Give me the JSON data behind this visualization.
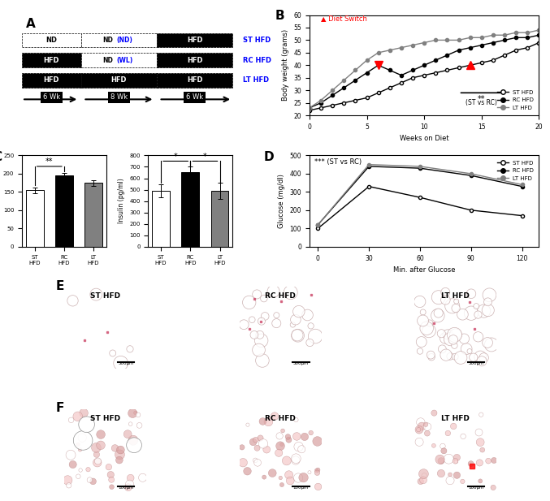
{
  "panel_A": {
    "rows": [
      {
        "segments": [
          "ND",
          "ND (ND)",
          "HFD"
        ],
        "colors": [
          "white",
          "white",
          "black"
        ],
        "text_colors": [
          "black",
          "black",
          "white"
        ],
        "highlight": "ND (ND)",
        "highlight_color": "blue",
        "label": "ST HFD",
        "label_color": "blue"
      },
      {
        "segments": [
          "HFD",
          "ND (WL)",
          "HFD"
        ],
        "colors": [
          "black",
          "white",
          "black"
        ],
        "text_colors": [
          "white",
          "black",
          "white"
        ],
        "highlight": "ND (WL)",
        "highlight_color": "blue",
        "label": "RC HFD",
        "label_color": "blue"
      },
      {
        "segments": [
          "HFD",
          "HFD",
          "HFD"
        ],
        "colors": [
          "black",
          "black",
          "black"
        ],
        "text_colors": [
          "white",
          "white",
          "white"
        ],
        "highlight": null,
        "label": "LT HFD",
        "label_color": "blue"
      }
    ],
    "arrow_labels": [
      "6 Wk",
      "8 Wk",
      "6 Wk"
    ]
  },
  "panel_B": {
    "weeks": [
      0,
      1,
      2,
      3,
      4,
      5,
      6,
      7,
      8,
      9,
      10,
      11,
      12,
      13,
      14,
      15,
      16,
      17,
      18,
      19,
      20
    ],
    "ST_HFD": [
      22,
      23,
      24,
      25,
      26,
      27,
      29,
      31,
      33,
      35,
      36,
      37,
      38,
      39,
      40,
      41,
      42,
      44,
      46,
      47,
      49
    ],
    "RC_HFD": [
      23,
      25,
      28,
      31,
      34,
      37,
      40,
      38,
      36,
      38,
      40,
      42,
      44,
      46,
      47,
      48,
      49,
      50,
      51,
      51,
      52
    ],
    "LT_HFD": [
      23,
      26,
      30,
      34,
      38,
      42,
      45,
      46,
      47,
      48,
      49,
      50,
      50,
      50,
      51,
      51,
      52,
      52,
      53,
      53,
      54
    ],
    "diet_switch_week_RC": 6,
    "diet_switch_week_ST": 14,
    "ylabel": "Body weight (grams)",
    "xlabel": "Weeks on Diet",
    "ylim": [
      20,
      60
    ],
    "legend": [
      "ST HFD",
      "RC HFD",
      "LT HFD"
    ]
  },
  "panel_C_glucose": {
    "groups": [
      "ST\nHFD",
      "RC\nHFD",
      "LT\nHFD"
    ],
    "values": [
      155,
      195,
      175
    ],
    "errors": [
      8,
      7,
      8
    ],
    "colors": [
      "white",
      "black",
      "gray"
    ],
    "ylabel": "Glucose (mg/dl)",
    "ylim": [
      0,
      250
    ],
    "sig": {
      "bracket": [
        0,
        1
      ],
      "text": "**"
    }
  },
  "panel_C_insulin": {
    "groups": [
      "ST\nHFD",
      "RC\nHFD",
      "LT\nHFD"
    ],
    "values": [
      490,
      650,
      490
    ],
    "errors": [
      60,
      50,
      70
    ],
    "colors": [
      "white",
      "black",
      "gray"
    ],
    "ylabel": "Insulin (pg/ml)",
    "ylim": [
      0,
      800
    ],
    "sig": [
      {
        "bracket": [
          0,
          1
        ],
        "text": "*"
      },
      {
        "bracket": [
          1,
          2
        ],
        "text": "*"
      }
    ]
  },
  "panel_D": {
    "timepoints": [
      0,
      30,
      60,
      90,
      120
    ],
    "ST_HFD": [
      100,
      330,
      270,
      200,
      170
    ],
    "RC_HFD": [
      120,
      440,
      430,
      390,
      330
    ],
    "LT_HFD": [
      120,
      450,
      440,
      400,
      340
    ],
    "ylabel": "Glucose (mg/dl)",
    "xlabel": "Min. after Glucose",
    "ylim": [
      0,
      500
    ],
    "legend": [
      "ST HFD",
      "RC HFD",
      "LT HFD"
    ],
    "sig_text": "*** (ST vs RC)"
  },
  "panel_E_labels": [
    "ST HFD",
    "RC HFD",
    "LT HFD"
  ],
  "panel_F_labels": [
    "ST HFD",
    "RC HFD",
    "LT HFD"
  ],
  "colors": {
    "ST_HFD": "white",
    "RC_HFD": "black",
    "LT_HFD": "gray",
    "sig_red": "#ff0000",
    "blue_label": "#0000ff"
  }
}
